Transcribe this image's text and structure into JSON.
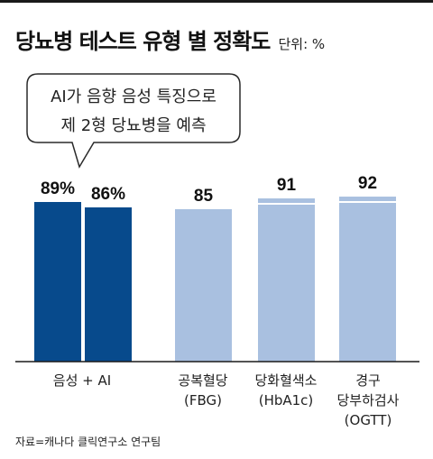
{
  "header": {
    "title": "당뇨병 테스트 유형 별 정확도",
    "unit": "단위: %"
  },
  "callout": {
    "lines": [
      "AI가 음향 음성 특징으로",
      "제 2형 당뇨병을 예측"
    ]
  },
  "chart_data": {
    "type": "bar",
    "title": "당뇨병 테스트 유형 별 정확도",
    "unit": "%",
    "bars": [
      {
        "group": "음성 + AI",
        "label": "89%",
        "value": 89,
        "color": "#074a8c"
      },
      {
        "group": "음성 + AI",
        "label": "86%",
        "value": 86,
        "color": "#074a8c"
      },
      {
        "group": "공복혈당 (FBG)",
        "label": "85",
        "value": 85,
        "color": "#a9c0e0"
      },
      {
        "group": "당화혈색소 (HbA1c)",
        "label": "91",
        "value": 91,
        "color": "#a9c0e0"
      },
      {
        "group": "경구 당부하검사 (OGTT)",
        "label": "92",
        "value": 92,
        "color": "#a9c0e0"
      }
    ],
    "categories": [
      {
        "lines": [
          "음성 + AI"
        ]
      },
      {
        "lines": [
          "공복혈당",
          "(FBG)"
        ]
      },
      {
        "lines": [
          "당화혈색소",
          "(HbA1c)"
        ]
      },
      {
        "lines": [
          "경구",
          "당부하검사",
          "(OGTT)"
        ]
      }
    ],
    "grid": false,
    "legend": "none"
  },
  "source": "자료=캐나다 클릭연구소 연구팀"
}
